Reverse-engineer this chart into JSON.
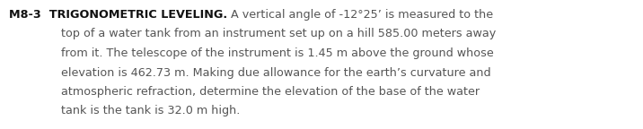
{
  "line1_bold": "M8-3  TRIGONOMETRIC LEVELING.",
  "line1_normal": " A vertical angle of -12°25’ is measured to the",
  "line2": "top of a water tank from an instrument set up on a hill 585.00 meters away",
  "line3": "from it. The telescope of the instrument is 1.45 m above the ground whose",
  "line4": "elevation is 462.73 m. Making due allowance for the earth’s curvature and",
  "line5": "atmospheric refraction, determine the elevation of the base of the water",
  "line6": "tank is the tank is 32.0 m high.",
  "background_color": "#ffffff",
  "text_color": "#555555",
  "bold_color": "#111111",
  "font_size": 9.2,
  "fig_width": 7.16,
  "fig_height": 1.44,
  "dpi": 100
}
